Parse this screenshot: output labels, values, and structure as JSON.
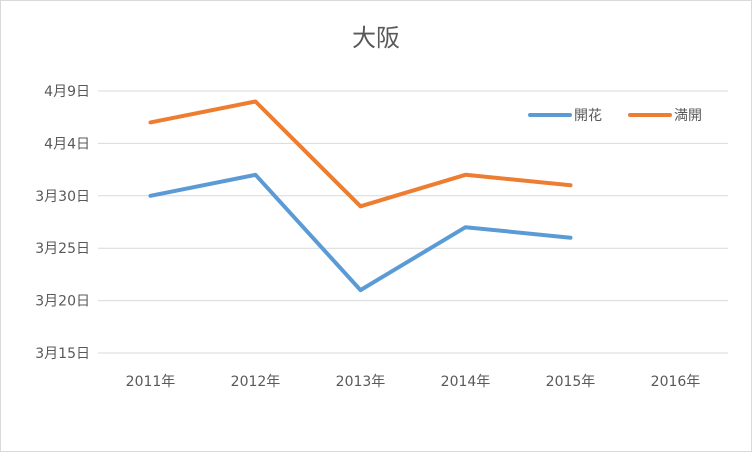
{
  "chart_data": {
    "type": "line",
    "title": "大阪",
    "categories": [
      "2011年",
      "2012年",
      "2013年",
      "2014年",
      "2015年",
      "2016年"
    ],
    "y_tick_labels": [
      "4月9日",
      "4月4日",
      "3月30日",
      "3月25日",
      "3月20日",
      "3月15日"
    ],
    "y_tick_values": [
      99,
      94,
      89,
      84,
      79,
      74
    ],
    "ylim": [
      74,
      99
    ],
    "y_unit": "day of year",
    "grid": true,
    "legend_position": "top-right",
    "series": [
      {
        "name": "開花",
        "color": "#5b9bd5",
        "values": [
          89,
          91,
          80,
          86,
          85,
          null
        ]
      },
      {
        "name": "満開",
        "color": "#ed7d31",
        "values": [
          96,
          98,
          88,
          91,
          90,
          null
        ]
      }
    ]
  }
}
